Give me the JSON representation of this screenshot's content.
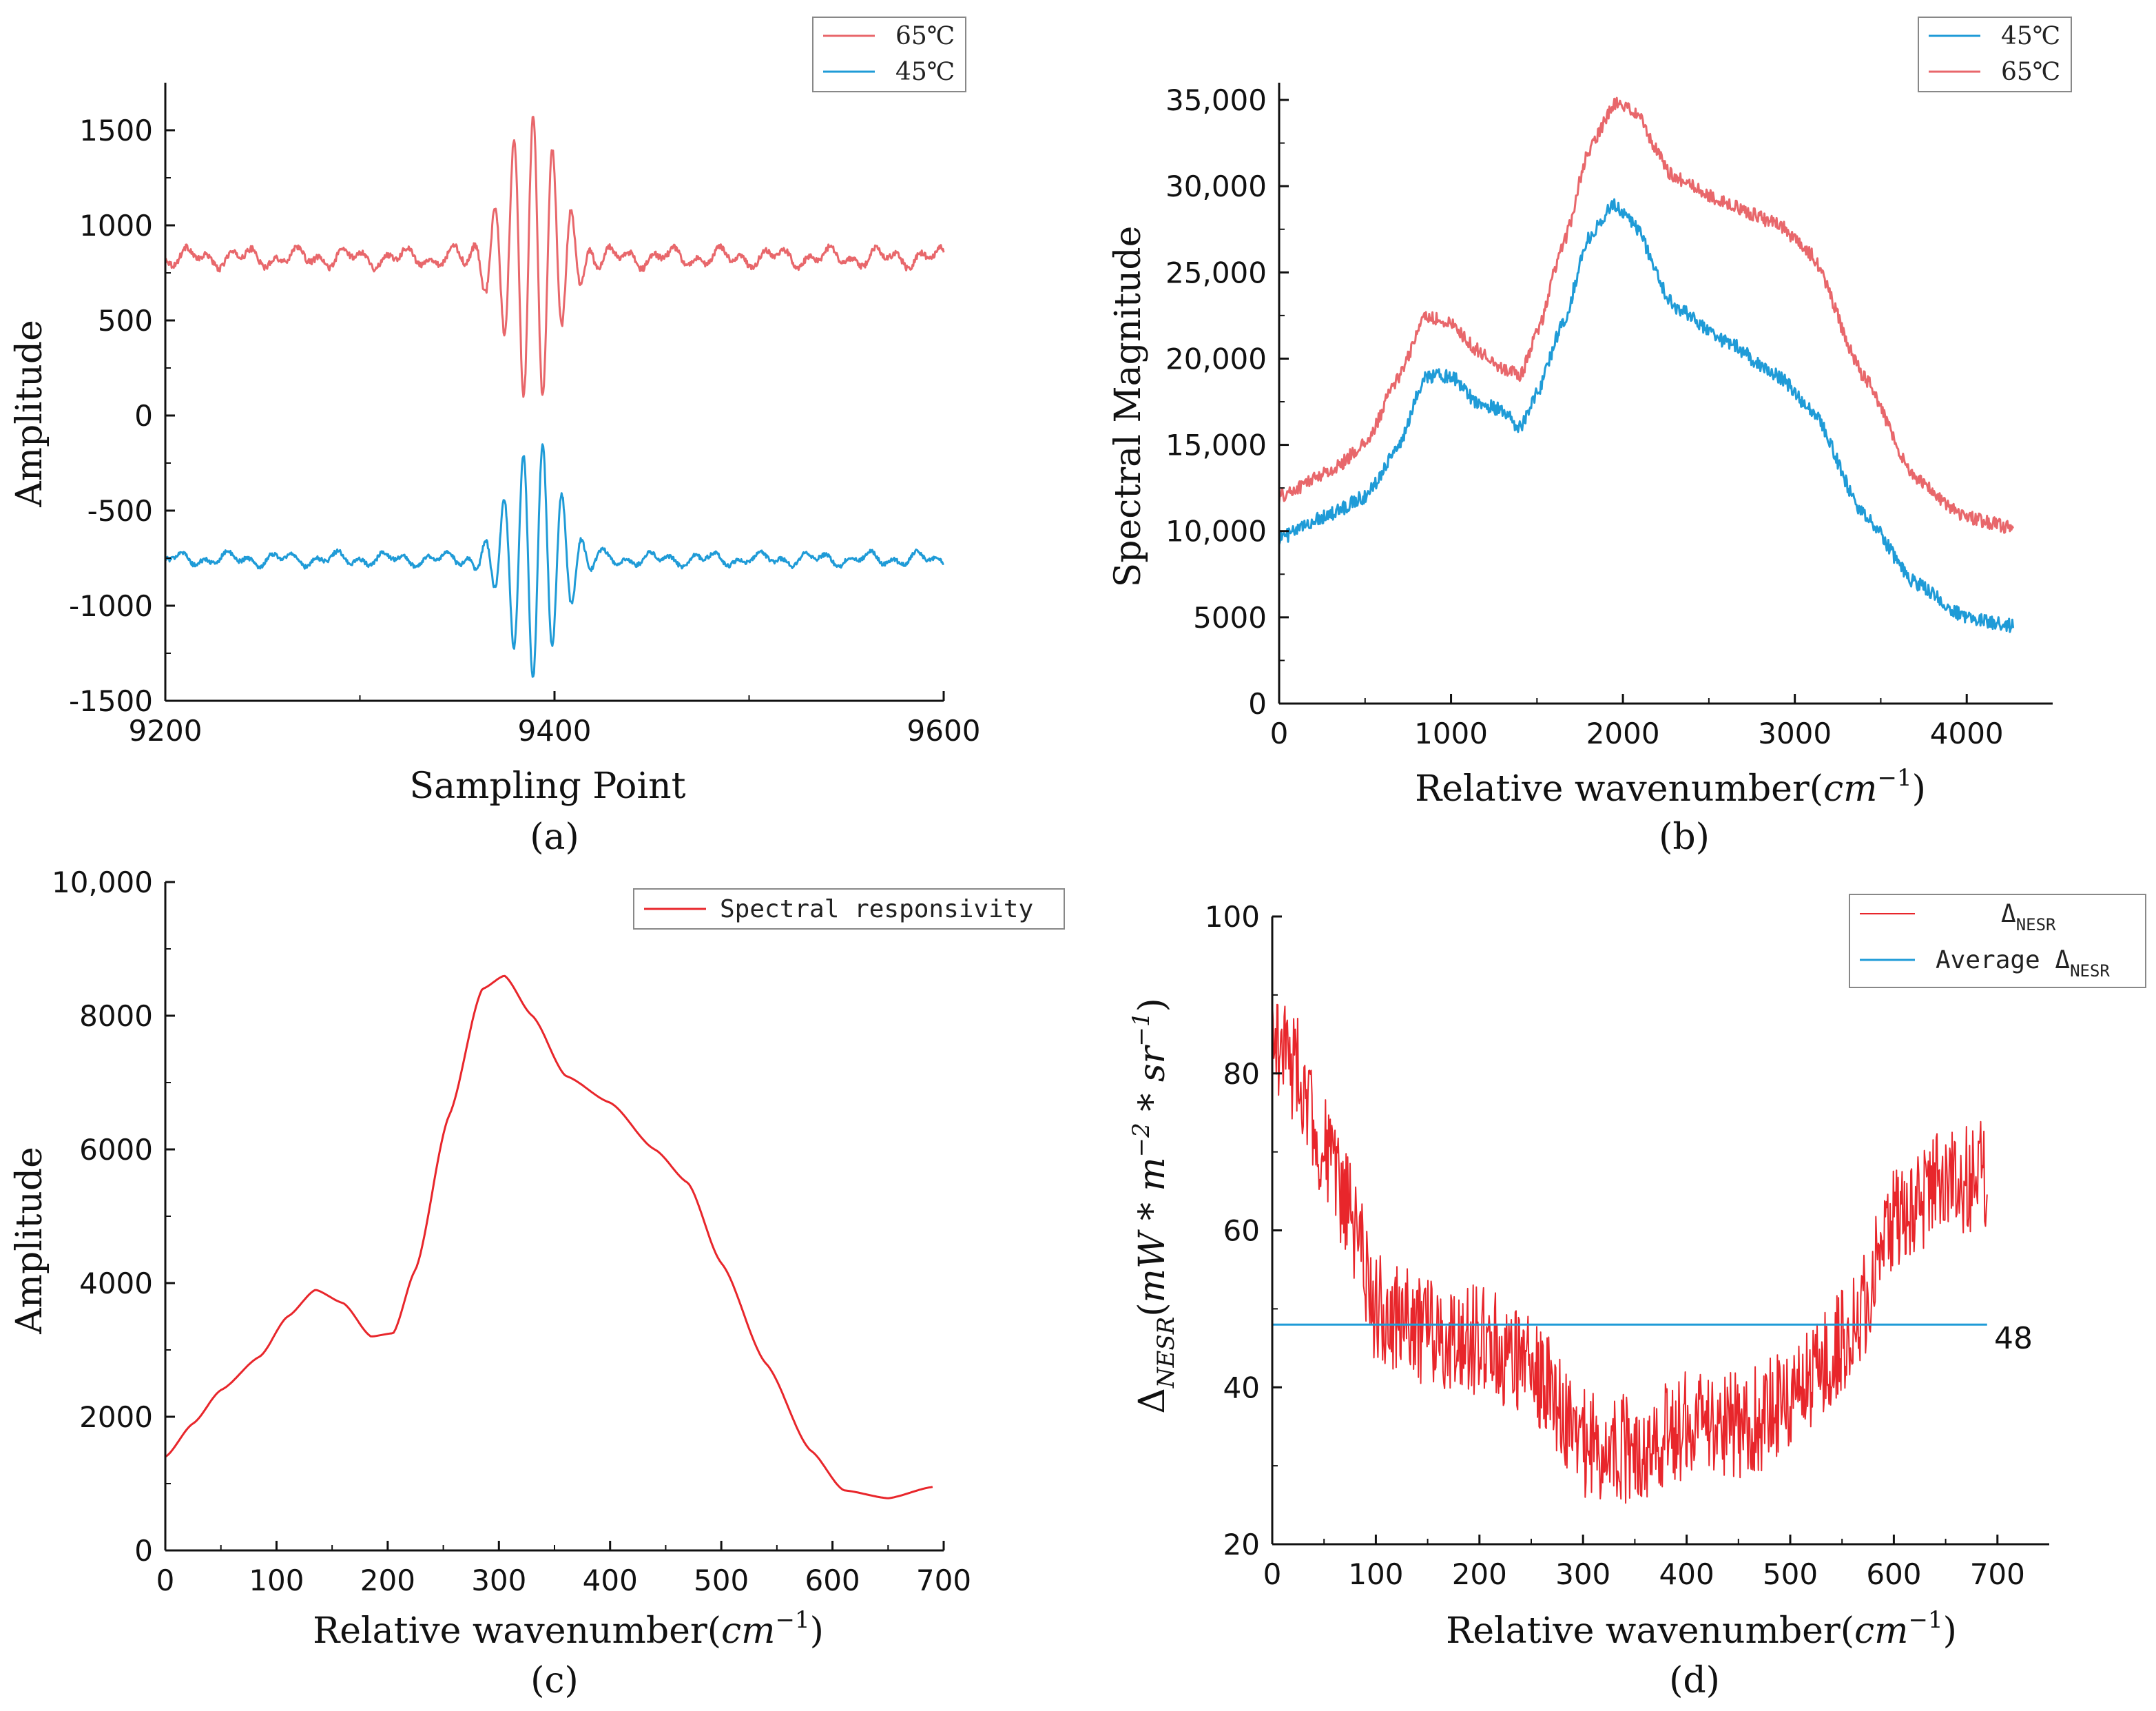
{
  "colors": {
    "red": "#e8676b",
    "red_c": "#e8262b",
    "blue": "#1f9bd7",
    "axis": "#111111"
  },
  "chart_data": [
    {
      "id": "a",
      "type": "line",
      "panel_label": "(a)",
      "xlabel": "Sampling Point",
      "ylabel": "Amplitude",
      "xlim": [
        9200,
        9600
      ],
      "ylim": [
        -1500,
        1750
      ],
      "xticks": [
        9200,
        9400,
        9600
      ],
      "yticks": [
        -1500,
        -1000,
        -500,
        0,
        500,
        1000,
        1500
      ],
      "ytick_labels": [
        "-1500",
        "-1000",
        "-500",
        "0",
        "500",
        "1000",
        "1500"
      ],
      "legend": {
        "position": "top-right",
        "entries": [
          {
            "label": "65℃",
            "color": "#e8676b"
          },
          {
            "label": "45℃",
            "color": "#1f9bd7"
          }
        ]
      },
      "series": [
        {
          "name": "65℃",
          "color": "#e8676b",
          "kind": "interferogram",
          "baseline": 830,
          "noise": 35,
          "burst_center": 9389,
          "burst_amps": [
            240,
            420,
            630,
            420,
            240
          ],
          "burst_period": 10
        },
        {
          "name": "45℃",
          "color": "#1f9bd7",
          "kind": "interferogram",
          "baseline": -755,
          "noise": 25,
          "burst_center": 9389,
          "burst_amps": [
            240,
            400,
            500,
            400,
            240
          ],
          "burst_period": 10,
          "invert": true
        }
      ]
    },
    {
      "id": "b",
      "type": "line",
      "panel_label": "(b)",
      "xlabel": "Relative wavenumber(cm⁻¹)",
      "ylabel": "Spectral Magnitude",
      "xlim": [
        0,
        4500
      ],
      "ylim": [
        0,
        36000
      ],
      "xticks": [
        0,
        1000,
        2000,
        3000,
        4000
      ],
      "yticks": [
        0,
        5000,
        10000,
        15000,
        20000,
        25000,
        30000,
        35000
      ],
      "ytick_labels": [
        "0",
        "5000",
        "10,000",
        "15,000",
        "20,000",
        "25,000",
        "30,000",
        "35,000"
      ],
      "legend": {
        "position": "top-right",
        "entries": [
          {
            "label": "45℃",
            "color": "#1f9bd7"
          },
          {
            "label": "65℃",
            "color": "#e8676b"
          }
        ]
      },
      "series": [
        {
          "name": "45℃",
          "color": "#1f9bd7",
          "noise": 400,
          "x": [
            0,
            300,
            500,
            700,
            850,
            1000,
            1150,
            1300,
            1400,
            1500,
            1650,
            1800,
            1950,
            2050,
            2300,
            2600,
            2900,
            3100,
            3400,
            3700,
            4000,
            4270
          ],
          "y": [
            9600,
            11000,
            12000,
            15000,
            19000,
            19000,
            17500,
            17000,
            16000,
            18000,
            22000,
            27000,
            29000,
            28000,
            23000,
            21000,
            19000,
            17000,
            11000,
            7000,
            5000,
            4500
          ]
        },
        {
          "name": "65℃",
          "color": "#e8676b",
          "noise": 400,
          "x": [
            0,
            300,
            500,
            700,
            850,
            1000,
            1150,
            1300,
            1400,
            1500,
            1650,
            1800,
            1950,
            2050,
            2300,
            2600,
            2900,
            3100,
            3400,
            3700,
            4000,
            4270
          ],
          "y": [
            12000,
            13500,
            15000,
            19000,
            22500,
            22000,
            20500,
            19500,
            19000,
            21500,
            26500,
            32000,
            34800,
            34500,
            30500,
            29000,
            27800,
            26000,
            19000,
            13000,
            10800,
            10200
          ]
        }
      ]
    },
    {
      "id": "c",
      "type": "line",
      "panel_label": "(c)",
      "xlabel": "Relative wavenumber(cm⁻¹)",
      "ylabel": "Amplitude",
      "xlim": [
        0,
        700
      ],
      "ylim": [
        0,
        10000
      ],
      "xticks": [
        0,
        100,
        200,
        300,
        400,
        500,
        600,
        700
      ],
      "yticks": [
        0,
        2000,
        4000,
        6000,
        8000,
        10000
      ],
      "ytick_labels": [
        "0",
        "2000",
        "4000",
        "6000",
        "8000",
        "10,000"
      ],
      "legend": {
        "position": "top-right",
        "entries": [
          {
            "label": "Spectral responsivity",
            "color": "#e8262b"
          }
        ]
      },
      "series": [
        {
          "name": "Spectral responsivity",
          "color": "#e8262b",
          "noise": 0,
          "x": [
            0,
            25,
            50,
            85,
            110,
            135,
            160,
            185,
            205,
            225,
            255,
            285,
            305,
            330,
            360,
            400,
            440,
            470,
            500,
            540,
            580,
            610,
            650,
            690
          ],
          "y": [
            1400,
            1900,
            2400,
            2900,
            3500,
            3900,
            3700,
            3200,
            3250,
            4200,
            6500,
            8400,
            8600,
            8000,
            7100,
            6700,
            6000,
            5500,
            4300,
            2800,
            1500,
            900,
            780,
            950
          ]
        }
      ]
    },
    {
      "id": "d",
      "type": "line",
      "panel_label": "(d)",
      "xlabel": "Relative wavenumber(cm⁻¹)",
      "ylabel": "Δ_NESR(mW*m⁻²*sr⁻¹)",
      "xlim": [
        0,
        750
      ],
      "ylim": [
        20,
        100
      ],
      "xticks": [
        0,
        100,
        200,
        300,
        400,
        500,
        600,
        700
      ],
      "yticks": [
        20,
        40,
        60,
        80,
        100
      ],
      "ytick_labels": [
        "20",
        "40",
        "60",
        "80",
        "100"
      ],
      "annotation": "48",
      "legend": {
        "position": "top-right",
        "entries": [
          {
            "label": "Δ",
            "sub": "NESR",
            "color": "#e8262b"
          },
          {
            "label": "Average  Δ",
            "sub": "NESR",
            "color": "#1f9bd7"
          }
        ]
      },
      "series": [
        {
          "name": "Δ_NESR",
          "color": "#e8262b",
          "noise": 7,
          "x": [
            0,
            25,
            50,
            75,
            100,
            150,
            200,
            250,
            300,
            350,
            400,
            450,
            500,
            540,
            570,
            600,
            650,
            690
          ],
          "y": [
            85,
            80,
            70,
            62,
            50,
            47,
            46,
            43,
            33,
            32,
            35,
            35,
            38,
            44,
            50,
            62,
            66,
            67
          ]
        },
        {
          "name": "Average Δ_NESR",
          "color": "#1f9bd7",
          "constant": 48,
          "x": [
            0,
            690
          ]
        }
      ]
    }
  ]
}
